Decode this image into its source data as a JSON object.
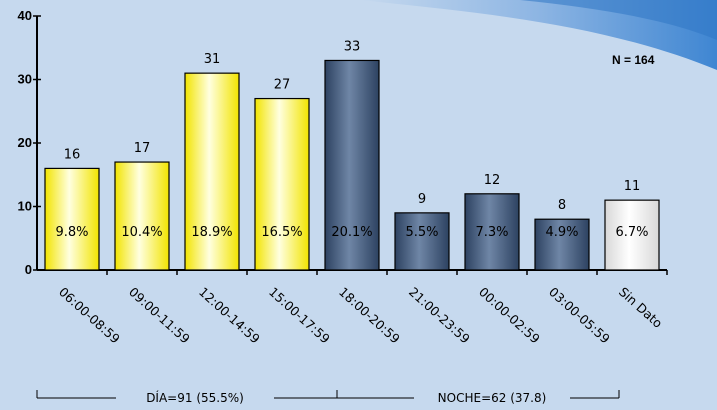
{
  "chart_data": {
    "type": "bar",
    "categories": [
      "06:00-08:59",
      "09:00-11:59",
      "12:00-14:59",
      "15:00-17:59",
      "18:00-20:59",
      "21:00-23:59",
      "00:00-02:59",
      "03:00-05:59",
      "Sin Dato"
    ],
    "values": [
      16,
      17,
      31,
      27,
      33,
      9,
      12,
      8,
      11
    ],
    "percent_labels": [
      "9.8%",
      "10.4%",
      "18.9%",
      "16.5%",
      "20.1%",
      "5.5%",
      "7.3%",
      "4.9%",
      "6.7%"
    ],
    "bar_groups": [
      "day",
      "day",
      "day",
      "day",
      "night",
      "night",
      "night",
      "night",
      "none"
    ],
    "colors": {
      "day": "#ffff00",
      "night": "#3f5677",
      "none": "#ffffff",
      "background": "#c6d9ee"
    },
    "ylim": [
      0,
      40
    ],
    "yticks": [
      0,
      10,
      20,
      30,
      40
    ],
    "grid": false,
    "annotation": "N = 164",
    "groups": [
      {
        "label": "DÍA=91 (55.5%)"
      },
      {
        "label": "NOCHE=62 (37.8)"
      }
    ]
  }
}
